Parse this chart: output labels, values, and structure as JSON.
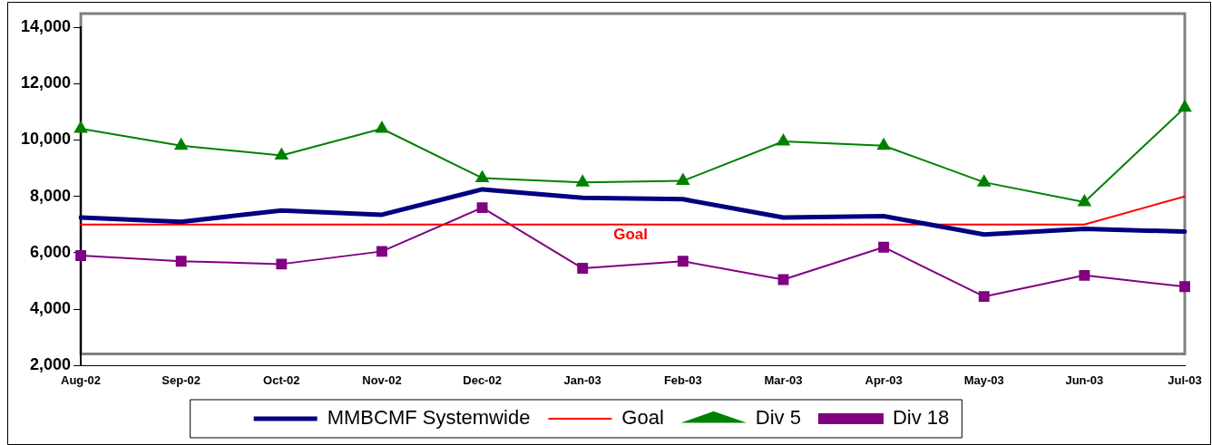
{
  "chart_data": {
    "type": "line",
    "categories": [
      "Aug-02",
      "Sep-02",
      "Oct-02",
      "Nov-02",
      "Dec-02",
      "Jan-03",
      "Feb-03",
      "Mar-03",
      "Apr-03",
      "May-03",
      "Jun-03",
      "Jul-03"
    ],
    "series": [
      {
        "name": "MMBCMF Systemwide",
        "color": "#000080",
        "values": [
          7250,
          7100,
          7500,
          7350,
          8250,
          7950,
          7900,
          7250,
          7300,
          6650,
          6850,
          6750
        ],
        "marker": "none"
      },
      {
        "name": "Goal",
        "color": "#ff0000",
        "values": [
          7000,
          7000,
          7000,
          7000,
          7000,
          7000,
          7000,
          7000,
          7000,
          7000,
          7000,
          8000
        ],
        "marker": "none"
      },
      {
        "name": "Div 5",
        "color": "#008000",
        "values": [
          10400,
          9800,
          9450,
          10400,
          8650,
          8500,
          8550,
          9950,
          9800,
          8500,
          7800,
          11150
        ],
        "marker": "triangle"
      },
      {
        "name": "Div 18",
        "color": "#800080",
        "values": [
          5900,
          5700,
          5600,
          6050,
          7600,
          5450,
          5700,
          5050,
          6200,
          4450,
          5200,
          4800
        ],
        "marker": "square"
      }
    ],
    "ylim": [
      2000,
      14000
    ],
    "yticks": [
      {
        "value": 2000,
        "label": "2,000"
      },
      {
        "value": 4000,
        "label": "4,000"
      },
      {
        "value": 6000,
        "label": "6,000"
      },
      {
        "value": 8000,
        "label": "8,000"
      },
      {
        "value": 10000,
        "label": "10,000"
      },
      {
        "value": 12000,
        "label": "12,000"
      },
      {
        "value": 14000,
        "label": "14,000"
      }
    ],
    "annotations": [
      {
        "text": "Goal",
        "x": "Jan-03",
        "y": 7000
      }
    ],
    "grid": false,
    "legend": "bottom"
  }
}
